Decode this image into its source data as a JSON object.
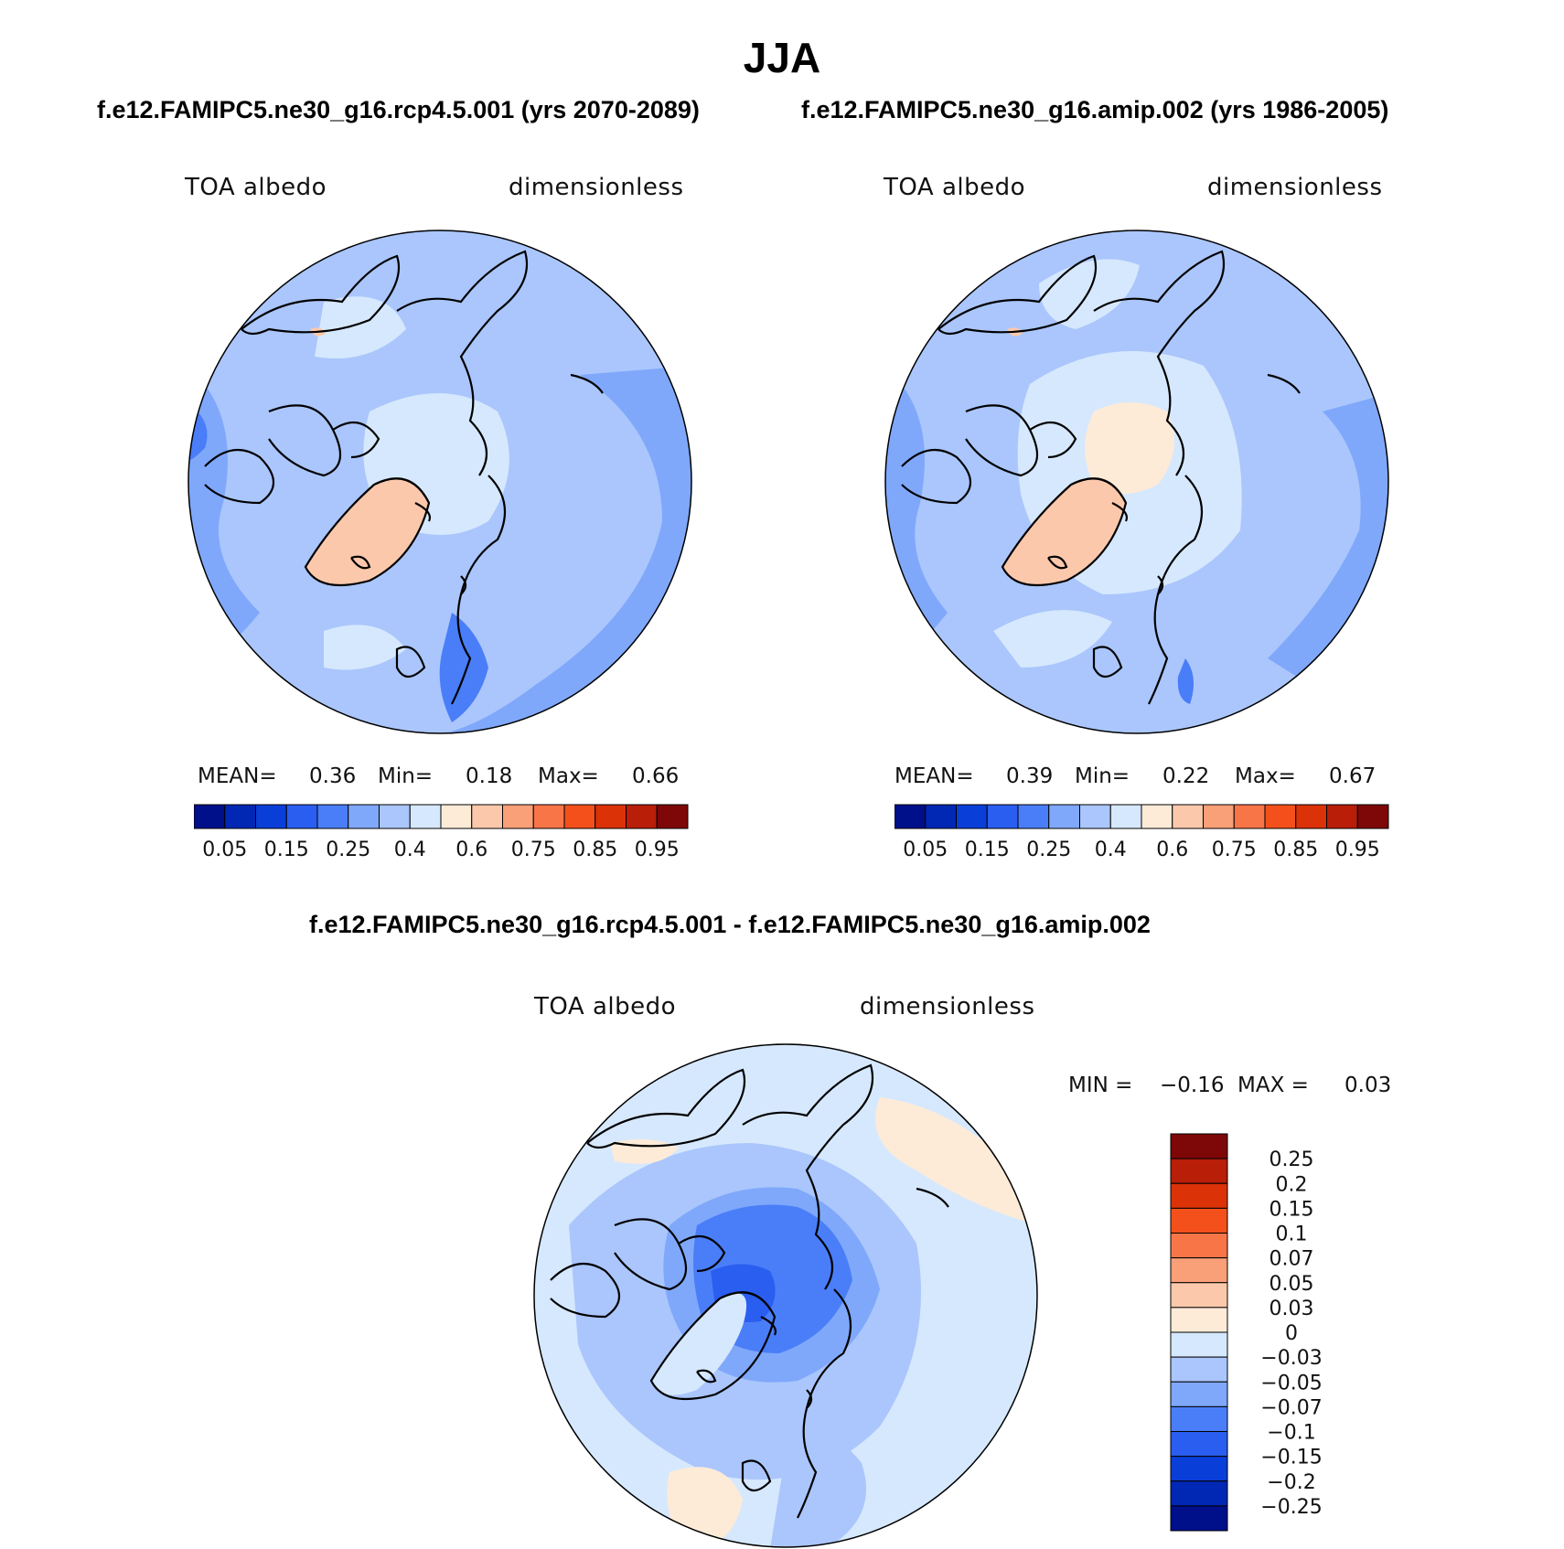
{
  "title": "JJA",
  "top_left": {
    "case_title": "f.e12.FAMIPC5.ne30_g16.rcp4.5.001 (yrs 2070-2089)",
    "variable": "TOA albedo",
    "units": "dimensionless",
    "stats": {
      "mean_label": "MEAN=",
      "mean": "0.36",
      "min_label": "Min=",
      "min": "0.18",
      "max_label": "Max=",
      "max": "0.66"
    }
  },
  "top_right": {
    "case_title": "f.e12.FAMIPC5.ne30_g16.amip.002 (yrs 1986-2005)",
    "variable": "TOA albedo",
    "units": "dimensionless",
    "stats": {
      "mean_label": "MEAN=",
      "mean": "0.39",
      "min_label": "Min=",
      "min": "0.22",
      "max_label": "Max=",
      "max": "0.67"
    }
  },
  "colorbar_abs": {
    "colors": [
      "#000f8a",
      "#0028b4",
      "#0a3ed8",
      "#2a5ef0",
      "#4a7ef8",
      "#7fa8fb",
      "#aac6fc",
      "#d6e8fd",
      "#fdebd8",
      "#fcc8ac",
      "#f9a078",
      "#f87548",
      "#f4501c",
      "#dc3208",
      "#b81e08",
      "#7e0808"
    ],
    "tick_labels": [
      "0.05",
      "0.15",
      "0.25",
      "0.4",
      "0.6",
      "0.75",
      "0.85",
      "0.95"
    ]
  },
  "difference": {
    "title": "f.e12.FAMIPC5.ne30_g16.rcp4.5.001 - f.e12.FAMIPC5.ne30_g16.amip.002",
    "variable": "TOA albedo",
    "units": "dimensionless",
    "min_label": "MIN =",
    "min": "−0.16",
    "max_label": "MAX =",
    "max": "0.03",
    "colorbar": {
      "colors": [
        "#7e0808",
        "#b81e08",
        "#dc3208",
        "#f4501c",
        "#f87548",
        "#f9a078",
        "#fcc8ac",
        "#fdebd8",
        "#d6e8fd",
        "#aac6fc",
        "#7fa8fb",
        "#4a7ef8",
        "#2a5ef0",
        "#0a3ed8",
        "#0028b4",
        "#000f8a"
      ],
      "tick_labels": [
        "0.25",
        "0.2",
        "0.15",
        "0.1",
        "0.07",
        "0.05",
        "0.03",
        "0",
        "−0.03",
        "−0.05",
        "−0.07",
        "−0.1",
        "−0.15",
        "−0.2",
        "−0.25"
      ]
    }
  },
  "map_colors": {
    "abs_base": "#aac6fc",
    "abs_light": "#d6e8fd",
    "abs_mid": "#7fa8fb",
    "abs_dark": "#4a7ef8",
    "abs_warm": "#fcc8ac",
    "abs_warm_light": "#fdebd8",
    "diff_base": "#d6e8fd",
    "diff_mid": "#aac6fc",
    "diff_dark": "#7fa8fb",
    "diff_strong": "#4a7ef8",
    "diff_core": "#2a5ef0",
    "diff_warm": "#fdebd8"
  }
}
